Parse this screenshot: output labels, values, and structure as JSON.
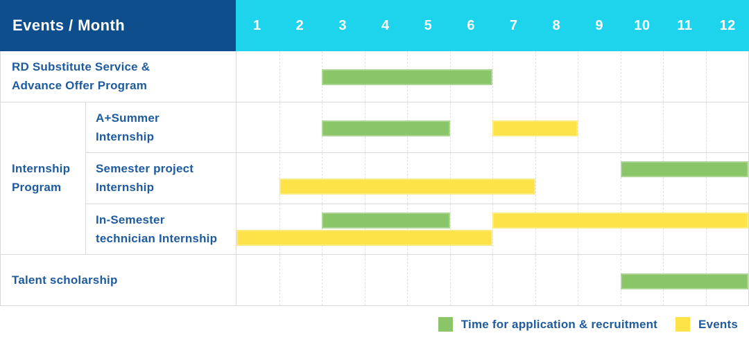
{
  "header": {
    "title": "Events / Month"
  },
  "group_label_lines": [
    "Internship",
    "Program"
  ],
  "colors": {
    "header_bg": "#0f4e8c",
    "header_text": "#ffffff",
    "months_bg": "#1ed3ec",
    "green": "#8ac56a",
    "yellow": "#fde248",
    "label": "#1e5b9e",
    "grid": "#d9d9d9",
    "gridline": "#e2e2e2"
  },
  "chart_data": {
    "type": "gantt",
    "title": "Events / Month",
    "x_axis_label": "Month",
    "x_ticks": [
      "1",
      "2",
      "3",
      "4",
      "5",
      "6",
      "7",
      "8",
      "9",
      "10",
      "11",
      "12"
    ],
    "x_range": [
      1,
      12
    ],
    "legend_position": "bottom-right",
    "legend": [
      {
        "label": "Time for application & recruitment",
        "color_key": "green"
      },
      {
        "label": "Events",
        "color_key": "yellow"
      }
    ],
    "rows": [
      {
        "group": "",
        "label": "RD Substitute Service & Advance Offer Program",
        "label_lines": [
          "RD Substitute Service &",
          "Advance Offer Program"
        ],
        "tracks": 1,
        "bars": [
          {
            "series": "Time for application & recruitment",
            "color_key": "green",
            "start_month": 3,
            "end_month": 6,
            "track": 1
          }
        ]
      },
      {
        "group": "Internship Program",
        "label": "A+Summer Internship",
        "label_lines": [
          "A+Summer",
          "Internship"
        ],
        "tracks": 1,
        "bars": [
          {
            "series": "Time for application & recruitment",
            "color_key": "green",
            "start_month": 3,
            "end_month": 5,
            "track": 1
          },
          {
            "series": "Events",
            "color_key": "yellow",
            "start_month": 7,
            "end_month": 8,
            "track": 1
          }
        ]
      },
      {
        "group": "Internship Program",
        "label": "Semester project Internship",
        "label_lines": [
          "Semester project",
          "Internship"
        ],
        "tracks": 2,
        "bars": [
          {
            "series": "Time for application & recruitment",
            "color_key": "green",
            "start_month": 10,
            "end_month": 12,
            "track": 1
          },
          {
            "series": "Events",
            "color_key": "yellow",
            "start_month": 2,
            "end_month": 7,
            "track": 2
          }
        ]
      },
      {
        "group": "Internship Program",
        "label": "In-Semester technician Internship",
        "label_lines": [
          "In-Semester",
          "technician Internship"
        ],
        "tracks": 2,
        "bars": [
          {
            "series": "Time for application & recruitment",
            "color_key": "green",
            "start_month": 3,
            "end_month": 5,
            "track": 1
          },
          {
            "series": "Events",
            "color_key": "yellow",
            "start_month": 7,
            "end_month": 12,
            "track": 1
          },
          {
            "series": "Events",
            "color_key": "yellow",
            "start_month": 1,
            "end_month": 6,
            "track": 2
          }
        ]
      },
      {
        "group": "",
        "label": "Talent scholarship",
        "label_lines": [
          "Talent scholarship"
        ],
        "tracks": 1,
        "bars": [
          {
            "series": "Time for application & recruitment",
            "color_key": "green",
            "start_month": 10,
            "end_month": 12,
            "track": 1
          }
        ]
      }
    ]
  }
}
